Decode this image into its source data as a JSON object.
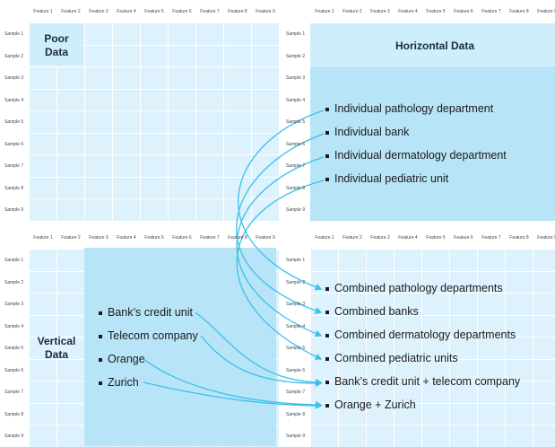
{
  "features": [
    "Feature 1",
    "Feature 2",
    "Feature 3",
    "Feature 4",
    "Feature 5",
    "Feature 6",
    "Feature 7",
    "Feature 8",
    "Feature 9"
  ],
  "samples": [
    "Sample 1",
    "Sample 2",
    "Sample 3",
    "Sample 4",
    "Sample 5",
    "Sample 6",
    "Sample 7",
    "Sample 8",
    "Sample 9"
  ],
  "poor": {
    "title": "Poor Data"
  },
  "horizontal": {
    "title": "Horizontal Data",
    "items": [
      "Individual pathology department",
      "Individual bank",
      "Individual dermatology department",
      "Individual pediatric unit"
    ]
  },
  "vertical": {
    "title": "Vertical Data",
    "items": [
      "Bank’s credit unit",
      "Telecom company",
      "Orange",
      "Zurich"
    ]
  },
  "combined": {
    "items": [
      "Combined pathology departments",
      "Combined banks",
      "Combined dermatology departments",
      "Combined pediatric units",
      "Bank’s credit unit + telecom company",
      "Orange + Zurich"
    ]
  },
  "colors": {
    "cell": "#ddf2fc",
    "highlight": "#b8e4f8",
    "arrow": "#3cc0ea"
  }
}
